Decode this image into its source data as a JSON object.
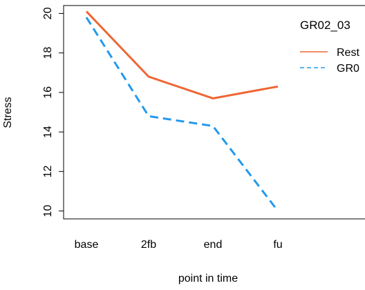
{
  "chart_data": {
    "type": "line",
    "title": "",
    "xlabel": "point in time",
    "ylabel": "Stress",
    "categories": [
      "base",
      "2fb",
      "end",
      "fu"
    ],
    "ylim": [
      9.6,
      20.4
    ],
    "yticks": [
      10,
      12,
      14,
      16,
      18,
      20
    ],
    "ytick_labels": [
      "10",
      "12",
      "14",
      "16",
      "18",
      "20"
    ],
    "grid": false,
    "legend": {
      "title": "GR02_03",
      "placement": "top-right",
      "labels": [
        "Rest",
        "GR0"
      ]
    },
    "series": [
      {
        "name": "Rest",
        "values": [
          20.1,
          16.8,
          15.7,
          16.3
        ],
        "color": "#EE6633",
        "dash": "solid"
      },
      {
        "name": "GR0",
        "values": [
          19.8,
          14.8,
          14.3,
          10.0
        ],
        "color": "#2299EE",
        "dash": "dashed"
      }
    ]
  }
}
